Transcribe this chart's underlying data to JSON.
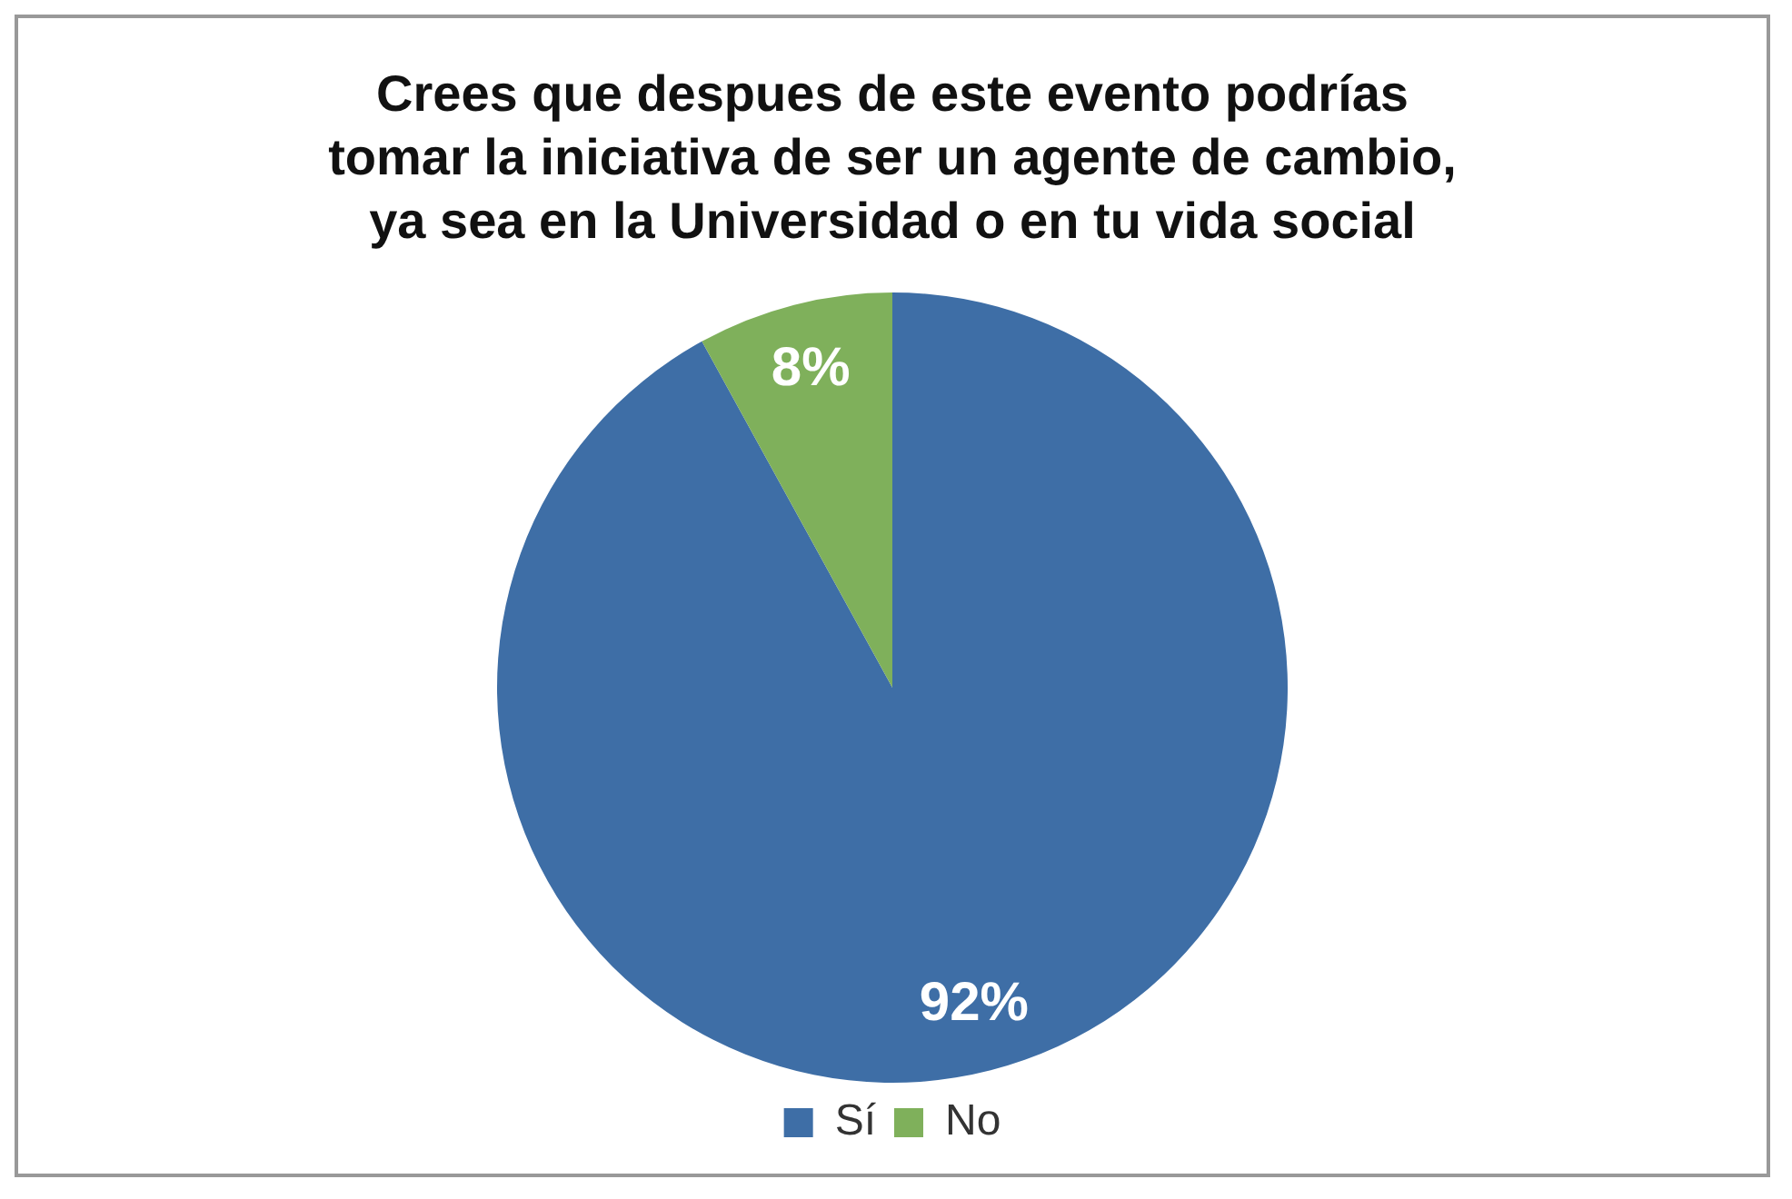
{
  "chart_data": {
    "type": "pie",
    "title": "Crees que despues de este evento podrías\ntomar la iniciativa de ser un agente de cambio,\nya sea en la Universidad o en tu vida social",
    "categories": [
      "Sí",
      "No"
    ],
    "values": [
      92,
      8
    ],
    "colors": [
      "#3e6ea6",
      "#7fb05b"
    ],
    "value_labels": [
      "92%",
      "8%"
    ],
    "legend": "bottom"
  }
}
